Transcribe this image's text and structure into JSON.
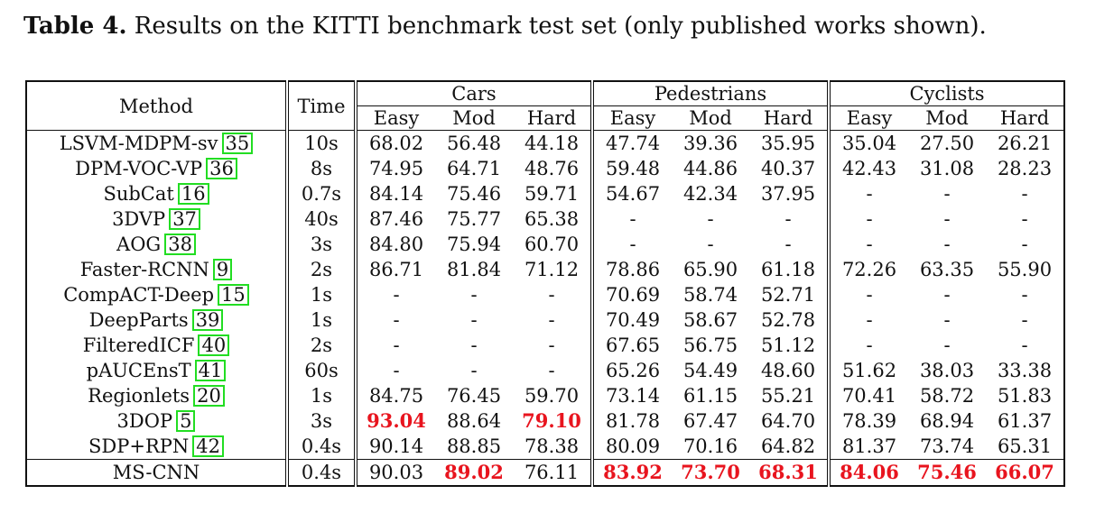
{
  "caption": {
    "label": "Table 4.",
    "text": "Results on the KITTI benchmark test set (only published works shown)."
  },
  "header": {
    "method": "Method",
    "time": "Time",
    "groups": [
      "Cars",
      "Pedestrians",
      "Cyclists"
    ],
    "subcols": [
      "Easy",
      "Mod",
      "Hard"
    ]
  },
  "rows": [
    {
      "method": "LSVM-MDPM-sv",
      "ref": "35",
      "time": "10s",
      "vals": [
        "68.02",
        "56.48",
        "44.18",
        "47.74",
        "39.36",
        "35.95",
        "35.04",
        "27.50",
        "26.21"
      ],
      "best": []
    },
    {
      "method": "DPM-VOC-VP",
      "ref": "36",
      "time": "8s",
      "vals": [
        "74.95",
        "64.71",
        "48.76",
        "59.48",
        "44.86",
        "40.37",
        "42.43",
        "31.08",
        "28.23"
      ],
      "best": []
    },
    {
      "method": "SubCat",
      "ref": "16",
      "time": "0.7s",
      "vals": [
        "84.14",
        "75.46",
        "59.71",
        "54.67",
        "42.34",
        "37.95",
        "-",
        "-",
        "-"
      ],
      "best": []
    },
    {
      "method": "3DVP",
      "ref": "37",
      "time": "40s",
      "vals": [
        "87.46",
        "75.77",
        "65.38",
        "-",
        "-",
        "-",
        "-",
        "-",
        "-"
      ],
      "best": []
    },
    {
      "method": "AOG",
      "ref": "38",
      "time": "3s",
      "vals": [
        "84.80",
        "75.94",
        "60.70",
        "-",
        "-",
        "-",
        "-",
        "-",
        "-"
      ],
      "best": []
    },
    {
      "method": "Faster-RCNN",
      "ref": "9",
      "time": "2s",
      "vals": [
        "86.71",
        "81.84",
        "71.12",
        "78.86",
        "65.90",
        "61.18",
        "72.26",
        "63.35",
        "55.90"
      ],
      "best": []
    },
    {
      "method": "CompACT-Deep",
      "ref": "15",
      "time": "1s",
      "vals": [
        "-",
        "-",
        "-",
        "70.69",
        "58.74",
        "52.71",
        "-",
        "-",
        "-"
      ],
      "best": []
    },
    {
      "method": "DeepParts",
      "ref": "39",
      "time": "1s",
      "vals": [
        "-",
        "-",
        "-",
        "70.49",
        "58.67",
        "52.78",
        "-",
        "-",
        "-"
      ],
      "best": []
    },
    {
      "method": "FilteredICF",
      "ref": "40",
      "time": "2s",
      "vals": [
        "-",
        "-",
        "-",
        "67.65",
        "56.75",
        "51.12",
        "-",
        "-",
        "-"
      ],
      "best": []
    },
    {
      "method": "pAUCEnsT",
      "ref": "41",
      "time": "60s",
      "vals": [
        "-",
        "-",
        "-",
        "65.26",
        "54.49",
        "48.60",
        "51.62",
        "38.03",
        "33.38"
      ],
      "best": []
    },
    {
      "method": "Regionlets",
      "ref": "20",
      "time": "1s",
      "vals": [
        "84.75",
        "76.45",
        "59.70",
        "73.14",
        "61.15",
        "55.21",
        "70.41",
        "58.72",
        "51.83"
      ],
      "best": []
    },
    {
      "method": "3DOP",
      "ref": "5",
      "time": "3s",
      "vals": [
        "93.04",
        "88.64",
        "79.10",
        "81.78",
        "67.47",
        "64.70",
        "78.39",
        "68.94",
        "61.37"
      ],
      "best": [
        0,
        2
      ]
    },
    {
      "method": "SDP+RPN",
      "ref": "42",
      "time": "0.4s",
      "vals": [
        "90.14",
        "88.85",
        "78.38",
        "80.09",
        "70.16",
        "64.82",
        "81.37",
        "73.74",
        "65.31"
      ],
      "best": []
    }
  ],
  "ours": {
    "method": "MS-CNN",
    "time": "0.4s",
    "vals": [
      "90.03",
      "89.02",
      "76.11",
      "83.92",
      "73.70",
      "68.31",
      "84.06",
      "75.46",
      "66.07"
    ],
    "best": [
      1,
      3,
      4,
      5,
      6,
      7,
      8
    ]
  },
  "colors": {
    "best": "#e8141e",
    "ref_box": "#22dd22"
  }
}
